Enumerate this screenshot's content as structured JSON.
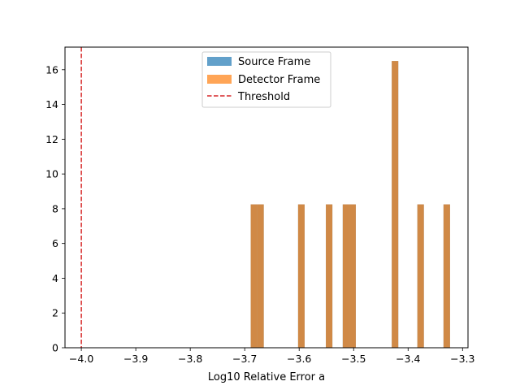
{
  "chart_data": {
    "type": "histogram",
    "title": "",
    "xlabel": "Log10 Relative Error a",
    "ylabel": "",
    "xlim": [
      -4.03,
      -3.29
    ],
    "ylim": [
      0,
      17.3
    ],
    "xticks": [
      -4.0,
      -3.9,
      -3.8,
      -3.7,
      -3.6,
      -3.5,
      -3.4,
      -3.3
    ],
    "xtick_labels": [
      "−4.0",
      "−3.9",
      "−3.8",
      "−3.7",
      "−3.6",
      "−3.5",
      "−3.4",
      "−3.3"
    ],
    "yticks": [
      0,
      2,
      4,
      6,
      8,
      10,
      12,
      14,
      16
    ],
    "ytick_labels": [
      "0",
      "2",
      "4",
      "6",
      "8",
      "10",
      "12",
      "14",
      "16"
    ],
    "bin_width": 0.012,
    "series": [
      {
        "name": "Source Frame",
        "color": "#1f77b4",
        "opacity": 0.7,
        "bins": [
          {
            "x0": -3.689,
            "x1": -3.677,
            "y": 8.25
          },
          {
            "x0": -3.677,
            "x1": -3.665,
            "y": 8.25
          },
          {
            "x0": -3.602,
            "x1": -3.59,
            "y": 8.25
          },
          {
            "x0": -3.551,
            "x1": -3.539,
            "y": 8.25
          },
          {
            "x0": -3.52,
            "x1": -3.508,
            "y": 8.25
          },
          {
            "x0": -3.508,
            "x1": -3.496,
            "y": 8.25
          },
          {
            "x0": -3.43,
            "x1": -3.418,
            "y": 16.5
          },
          {
            "x0": -3.383,
            "x1": -3.371,
            "y": 8.25
          },
          {
            "x0": -3.335,
            "x1": -3.323,
            "y": 8.25
          }
        ]
      },
      {
        "name": "Detector Frame",
        "color": "#ff7f0e",
        "opacity": 0.7,
        "bins": [
          {
            "x0": -3.689,
            "x1": -3.677,
            "y": 8.25
          },
          {
            "x0": -3.677,
            "x1": -3.665,
            "y": 8.25
          },
          {
            "x0": -3.602,
            "x1": -3.59,
            "y": 8.25
          },
          {
            "x0": -3.551,
            "x1": -3.539,
            "y": 8.25
          },
          {
            "x0": -3.52,
            "x1": -3.508,
            "y": 8.25
          },
          {
            "x0": -3.508,
            "x1": -3.496,
            "y": 8.25
          },
          {
            "x0": -3.43,
            "x1": -3.418,
            "y": 16.5
          },
          {
            "x0": -3.383,
            "x1": -3.371,
            "y": 8.25
          },
          {
            "x0": -3.335,
            "x1": -3.323,
            "y": 8.25
          }
        ]
      }
    ],
    "threshold": {
      "name": "Threshold",
      "x": -4.0,
      "color": "#d62728",
      "style": "dashed"
    },
    "legend": {
      "placement": "top-center",
      "entries": [
        "Source Frame",
        "Detector Frame",
        "Threshold"
      ]
    },
    "grid": false
  }
}
